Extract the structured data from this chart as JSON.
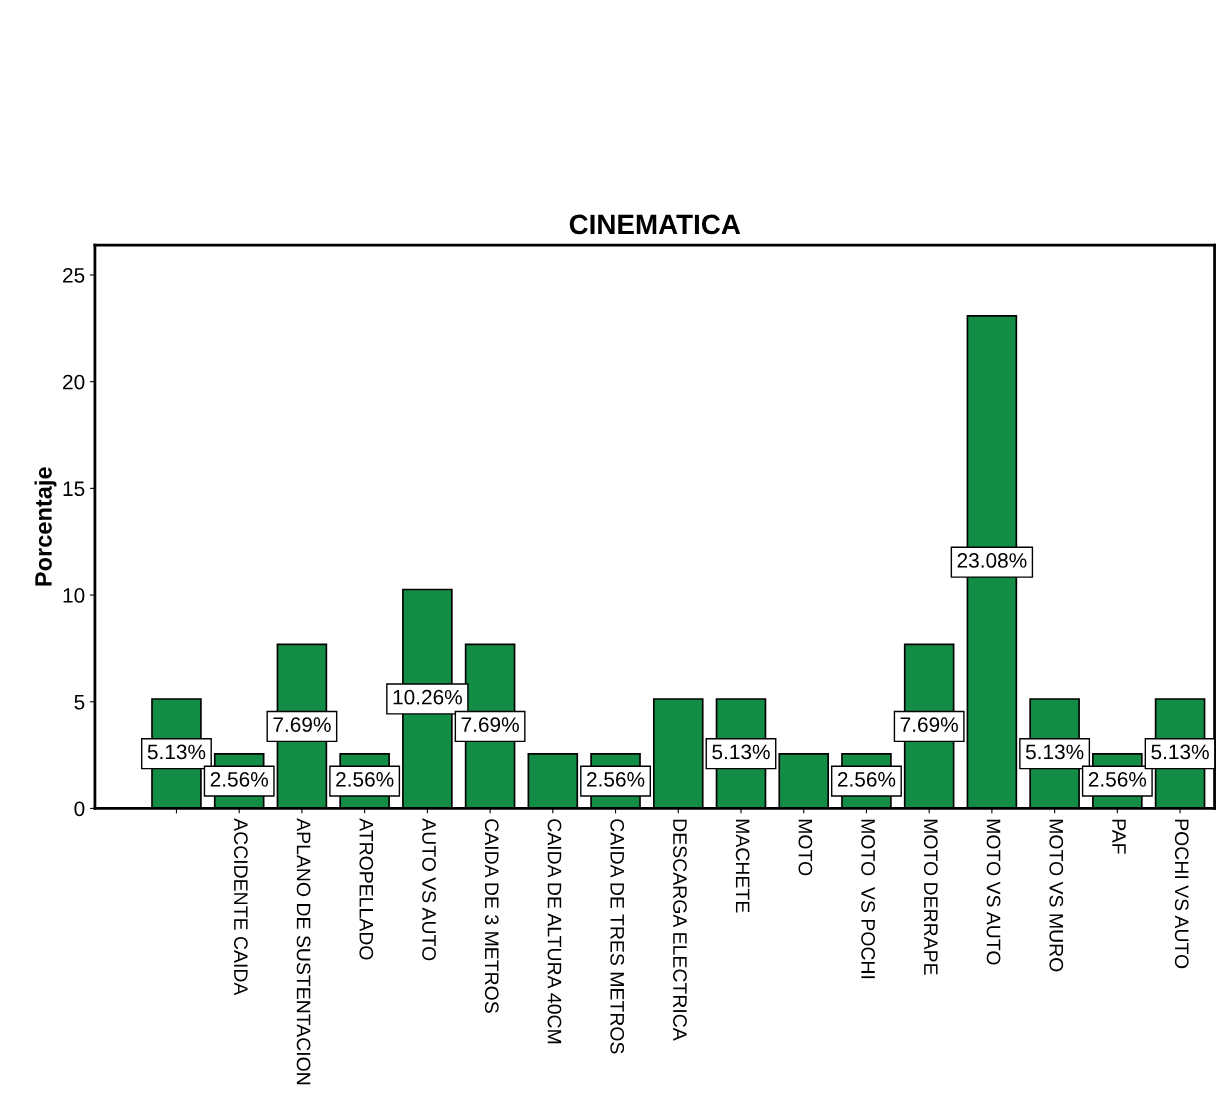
{
  "chart_data": {
    "type": "bar",
    "title": "CINEMATICA",
    "ylabel": "Porcentaje",
    "categories": [
      null,
      "ACCIDENTE CAIDA",
      "APLANO DE SUSTENTACION",
      "ATROPELLADO",
      "AUTO VS AUTO",
      "CAIDA DE 3 METROS",
      "CAIDA DE ALTURA 40CM",
      "CAIDA DE TRES METROS",
      "DESCARGA ELECTRICA",
      "MACHETE",
      "MOTO",
      "MOTO  VS POCHI",
      "MOTO DERRAPE",
      "MOTO VS AUTO",
      "MOTO VS MURO",
      "PAF",
      "POCHI VS AUTO"
    ],
    "values": [
      5.13,
      2.56,
      7.69,
      2.56,
      10.26,
      7.69,
      2.56,
      2.56,
      5.13,
      5.13,
      2.56,
      2.56,
      7.69,
      23.08,
      5.13,
      2.56,
      5.13
    ],
    "value_labels": [
      "5.13%",
      "2.56%",
      "7.69%",
      "2.56%",
      "10.26%",
      "7.69%",
      null,
      "2.56%",
      null,
      "5.13%",
      null,
      "2.56%",
      "7.69%",
      "23.08%",
      "5.13%",
      "2.56%",
      "5.13%"
    ],
    "color": "#138d45",
    "ylim": [
      0,
      26.4
    ],
    "yticks": [
      0,
      5,
      10,
      15,
      20,
      25
    ],
    "grid": false
  }
}
